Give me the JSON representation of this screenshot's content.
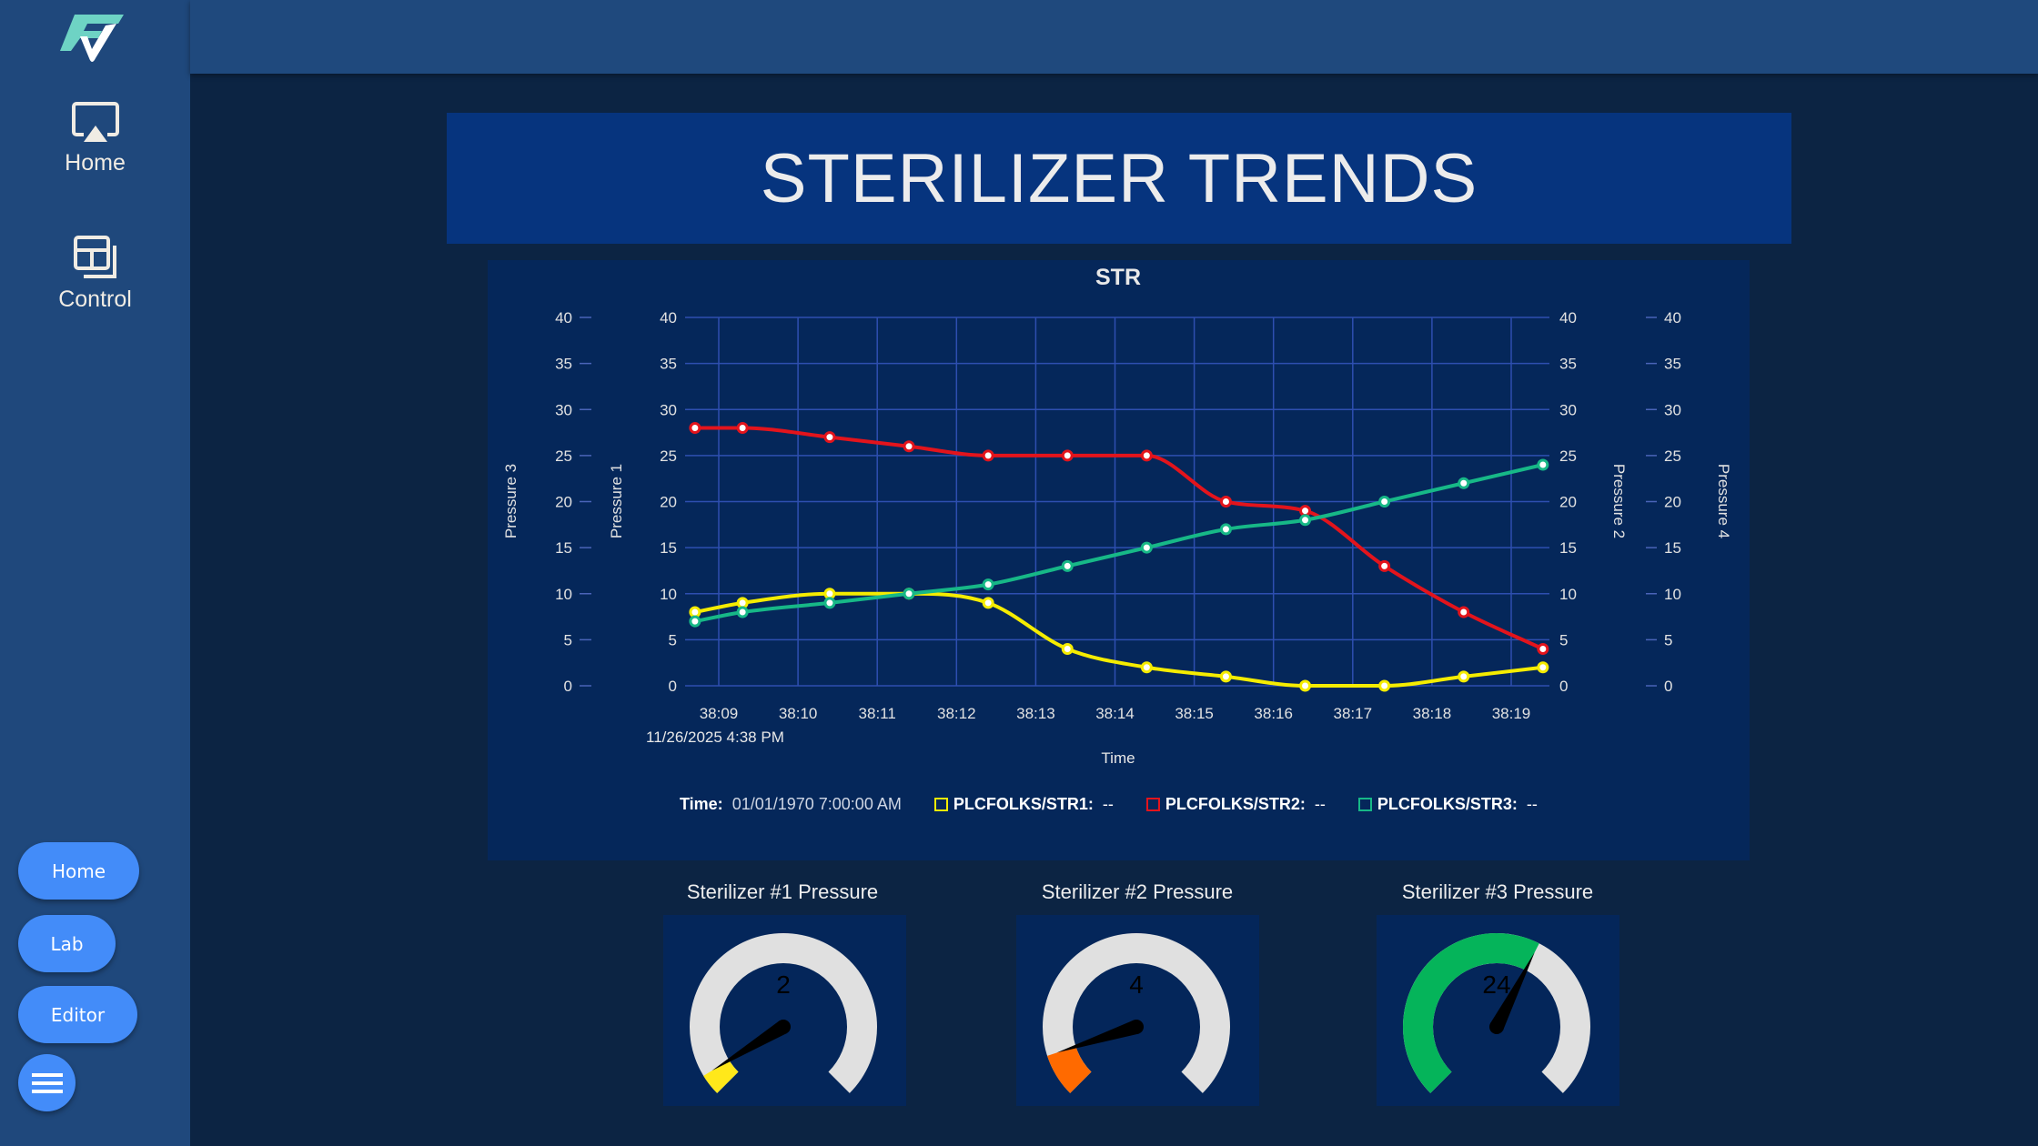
{
  "sidebar": {
    "logo": "FV",
    "nav": [
      {
        "label": "Home",
        "icon": "airplay-icon"
      },
      {
        "label": "Control",
        "icon": "dashboard-icon"
      }
    ],
    "buttons": [
      {
        "label": "Home"
      },
      {
        "label": "Lab"
      },
      {
        "label": "Editor"
      }
    ],
    "menu_icon": "hamburger-icon"
  },
  "banner": {
    "title": "STERILIZER TRENDS"
  },
  "chart_data": {
    "type": "line",
    "title": "STR",
    "xlabel": "Time",
    "x_date_label": "11/26/2025 4:38 PM",
    "x_ticks": [
      "38:09",
      "38:10",
      "38:11",
      "38:12",
      "38:13",
      "38:14",
      "38:15",
      "38:16",
      "38:17",
      "38:18",
      "38:19"
    ],
    "x": [
      "38:08.7",
      "38:09.3",
      "38:10.4",
      "38:11.4",
      "38:12.4",
      "38:13.4",
      "38:14.4",
      "38:15.4",
      "38:16.4",
      "38:17.4",
      "38:18.4",
      "38:19.4"
    ],
    "y_ticks": [
      0,
      5,
      10,
      15,
      20,
      25,
      30,
      35,
      40
    ],
    "y_axes": [
      {
        "name": "Pressure 3",
        "position": "left-outer",
        "range": [
          0,
          40
        ]
      },
      {
        "name": "Pressure 1",
        "position": "left",
        "range": [
          0,
          40
        ]
      },
      {
        "name": "Pressure 2",
        "position": "right",
        "range": [
          0,
          40
        ]
      },
      {
        "name": "Pressure 4",
        "position": "right-outer",
        "range": [
          0,
          40
        ]
      }
    ],
    "grid": true,
    "series": [
      {
        "name": "PLCFOLKS/STR1",
        "color": "#f5ec00",
        "values": [
          8,
          9,
          10,
          10,
          9,
          4,
          2,
          1,
          0,
          0,
          1,
          2
        ]
      },
      {
        "name": "PLCFOLKS/STR2",
        "color": "#e3141c",
        "values": [
          28,
          28,
          27,
          26,
          25,
          25,
          25,
          20,
          19,
          13,
          8,
          4
        ]
      },
      {
        "name": "PLCFOLKS/STR3",
        "color": "#17b887",
        "values": [
          7,
          8,
          9,
          10,
          11,
          13,
          15,
          17,
          18,
          20,
          22,
          24
        ]
      }
    ],
    "legend": {
      "placement": "bottom",
      "time_label": "Time:",
      "time_value": "01/01/1970 7:00:00 AM",
      "items": [
        {
          "label": "PLCFOLKS/STR1:",
          "value": "--",
          "color": "#f5ec00"
        },
        {
          "label": "PLCFOLKS/STR2:",
          "value": "--",
          "color": "#e3141c"
        },
        {
          "label": "PLCFOLKS/STR3:",
          "value": "--",
          "color": "#17b887"
        }
      ]
    }
  },
  "gauges": [
    {
      "title": "Sterilizer #1 Pressure",
      "value": 2,
      "display": "2",
      "min": 0,
      "max": 40,
      "color": "#ffe81a"
    },
    {
      "title": "Sterilizer #2 Pressure",
      "value": 4,
      "display": "4",
      "min": 0,
      "max": 40,
      "color": "#ff6a00"
    },
    {
      "title": "Sterilizer #3 Pressure",
      "value": 24,
      "display": "24",
      "min": 0,
      "max": 40,
      "color": "#05b45a"
    }
  ],
  "colors": {
    "sidebar": "#1f487c",
    "background": "#0c2443",
    "banner": "#06347e",
    "panel": "#05275a",
    "button": "#438cf9",
    "gauge_track": "#e0e0e0"
  }
}
